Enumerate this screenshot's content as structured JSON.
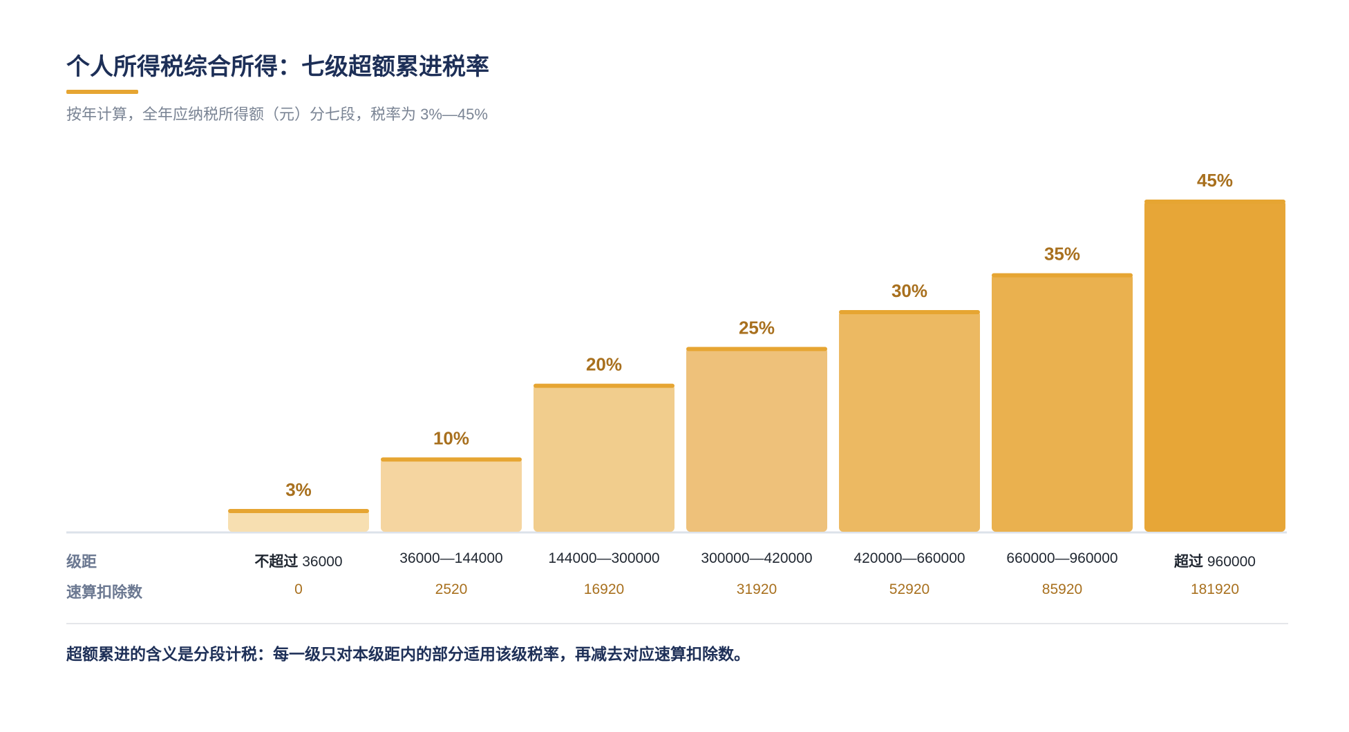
{
  "header": {
    "title": "个人所得税综合所得：七级超额累进税率",
    "subtitle": "按年计算，全年应纳税所得额（元）分七段，税率为 3%—45%"
  },
  "table": {
    "range_label": "级距",
    "deduct_label": "速算扣除数"
  },
  "footnote": "超额累进的含义是分段计税：每一级只对本级距内的部分适用该级税率，再减去对应速算扣除数。",
  "colors": {
    "title": "#1d2f57",
    "accent": "#e6a532",
    "rate_label": "#a8701e",
    "bar_fills": [
      "#f7dfb1",
      "#f5d5a0",
      "#f1cd8d",
      "#eec17a",
      "#ecb962",
      "#eab14f",
      "#e7a637"
    ]
  },
  "chart_data": {
    "type": "bar",
    "title": "个人所得税综合所得：七级超额累进税率",
    "xlabel": "",
    "ylabel": "",
    "unit": "%",
    "categories": [
      "不超过 36000",
      "36000—144000",
      "144000—300000",
      "300000—420000",
      "420000—660000",
      "660000—960000",
      "超过 960000"
    ],
    "category_parts": [
      {
        "prefix": "不超过",
        "value": "36000"
      },
      {
        "prefix": "",
        "value": "36000—144000"
      },
      {
        "prefix": "",
        "value": "144000—300000"
      },
      {
        "prefix": "",
        "value": "300000—420000"
      },
      {
        "prefix": "",
        "value": "420000—660000"
      },
      {
        "prefix": "",
        "value": "660000—960000"
      },
      {
        "prefix": "超过",
        "value": "960000"
      }
    ],
    "values": [
      3,
      10,
      20,
      25,
      30,
      35,
      45
    ],
    "value_labels": [
      "3%",
      "10%",
      "20%",
      "25%",
      "30%",
      "35%",
      "45%"
    ],
    "quick_deduction": [
      "0",
      "2520",
      "16920",
      "31920",
      "52920",
      "85920",
      "181920"
    ],
    "ylim": [
      0,
      45
    ],
    "grid": false,
    "legend": "none"
  }
}
